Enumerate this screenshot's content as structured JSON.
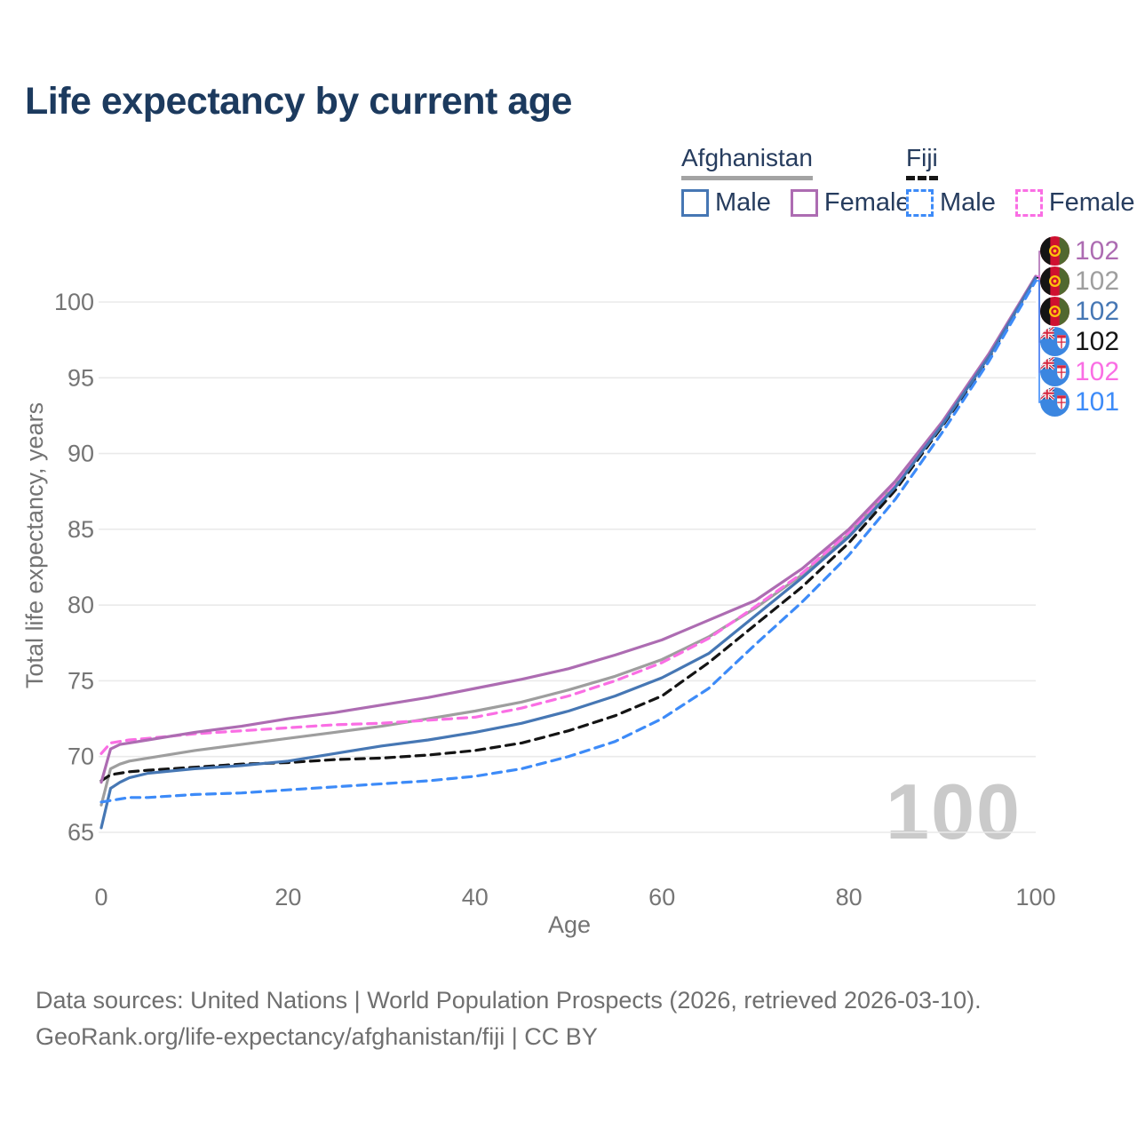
{
  "title": "Life expectancy by current age",
  "legend": {
    "groups": [
      {
        "label": "Afghanistan",
        "underline_style": "solid",
        "underline_color": "#a3a3a3",
        "items": [
          {
            "label": "Male",
            "color": "#4677b4",
            "dashed": false
          },
          {
            "label": "Female",
            "color": "#ad6cb2",
            "dashed": false
          }
        ]
      },
      {
        "label": "Fiji",
        "underline_style": "dashed",
        "underline_color": "#161616",
        "items": [
          {
            "label": "Male",
            "color": "#3d8bf8",
            "dashed": true
          },
          {
            "label": "Female",
            "color": "#fa6ee4",
            "dashed": true
          }
        ]
      }
    ]
  },
  "chart_data": {
    "type": "line",
    "title": "Life expectancy by current age",
    "xlabel": "Age",
    "ylabel": "Total life expectancy, years",
    "xlim": [
      0,
      100
    ],
    "ylim": [
      65,
      103
    ],
    "x_ticks": [
      0,
      20,
      40,
      60,
      80,
      100
    ],
    "y_ticks": [
      65,
      70,
      75,
      80,
      85,
      90,
      95,
      100
    ],
    "grid": "horizontal-only",
    "legend_position": "top-right",
    "age_indicator": "100",
    "x": [
      0,
      1,
      2,
      3,
      5,
      10,
      15,
      20,
      25,
      30,
      35,
      40,
      45,
      50,
      55,
      60,
      65,
      70,
      75,
      80,
      85,
      90,
      95,
      100
    ],
    "series": [
      {
        "key": "afg_total",
        "name": "Afghanistan (both sexes)",
        "country": "Afghanistan",
        "sex": "Both",
        "color": "#9e9e9e",
        "line_style": "solid",
        "flag": "afghanistan",
        "end_label": "102",
        "values": [
          66.8,
          69.2,
          69.5,
          69.7,
          69.9,
          70.4,
          70.8,
          71.2,
          71.6,
          72.0,
          72.5,
          73.0,
          73.6,
          74.4,
          75.3,
          76.4,
          77.9,
          79.8,
          82.0,
          84.7,
          88.0,
          92.0,
          96.5,
          101.7
        ]
      },
      {
        "key": "fiji_total",
        "name": "Fiji (both sexes)",
        "country": "Fiji",
        "sex": "Both",
        "color": "#141414",
        "line_style": "dashed",
        "flag": "fiji",
        "end_label": "102",
        "values": [
          68.4,
          68.8,
          68.9,
          69.0,
          69.1,
          69.3,
          69.5,
          69.6,
          69.8,
          69.9,
          70.1,
          70.4,
          70.9,
          71.7,
          72.7,
          74.0,
          76.2,
          78.7,
          81.2,
          84.1,
          87.6,
          91.8,
          96.3,
          101.6
        ]
      },
      {
        "key": "fiji_female",
        "name": "Fiji Female",
        "country": "Fiji",
        "sex": "Female",
        "color": "#fa6ee4",
        "line_style": "dashed",
        "flag": "fiji",
        "end_label": "102",
        "values": [
          70.2,
          70.9,
          71.0,
          71.1,
          71.2,
          71.5,
          71.7,
          71.9,
          72.1,
          72.2,
          72.4,
          72.6,
          73.2,
          74.0,
          75.0,
          76.2,
          77.8,
          79.9,
          82.1,
          84.8,
          88.1,
          92.0,
          96.5,
          101.7
        ]
      },
      {
        "key": "afg_female",
        "name": "Afghanistan Female",
        "country": "Afghanistan",
        "sex": "Female",
        "color": "#ad6cb2",
        "line_style": "solid",
        "flag": "afghanistan",
        "end_label": "102",
        "values": [
          68.3,
          70.5,
          70.8,
          70.9,
          71.1,
          71.6,
          72.0,
          72.5,
          72.9,
          73.4,
          73.9,
          74.5,
          75.1,
          75.8,
          76.7,
          77.7,
          79.0,
          80.3,
          82.4,
          85.0,
          88.2,
          92.1,
          96.6,
          101.7
        ]
      },
      {
        "key": "afg_male",
        "name": "Afghanistan Male",
        "country": "Afghanistan",
        "sex": "Male",
        "color": "#4677b4",
        "line_style": "solid",
        "flag": "afghanistan",
        "end_label": "102",
        "values": [
          65.3,
          67.9,
          68.3,
          68.6,
          68.9,
          69.2,
          69.4,
          69.7,
          70.2,
          70.7,
          71.1,
          71.6,
          72.2,
          73.0,
          74.0,
          75.2,
          76.8,
          79.3,
          81.8,
          84.5,
          87.8,
          91.9,
          96.4,
          101.6
        ]
      },
      {
        "key": "fiji_male",
        "name": "Fiji Male",
        "country": "Fiji",
        "sex": "Male",
        "color": "#3d8bf8",
        "line_style": "dashed",
        "flag": "fiji",
        "end_label": "101",
        "values": [
          67.0,
          67.1,
          67.2,
          67.3,
          67.3,
          67.5,
          67.6,
          67.8,
          68.0,
          68.2,
          68.4,
          68.7,
          69.2,
          70.0,
          71.0,
          72.5,
          74.5,
          77.4,
          80.2,
          83.3,
          87.0,
          91.4,
          96.1,
          101.4
        ]
      }
    ],
    "end_labels": [
      {
        "series": "afg_female",
        "value": "102"
      },
      {
        "series": "afg_total",
        "value": "102"
      },
      {
        "series": "afg_male",
        "value": "102"
      },
      {
        "series": "fiji_total",
        "value": "102"
      },
      {
        "series": "fiji_female",
        "value": "102"
      },
      {
        "series": "fiji_male",
        "value": "101"
      }
    ]
  },
  "footer": {
    "line1": "Data sources: United Nations | World Population Prospects (2026, retrieved 2026-03-10).",
    "line2": "GeoRank.org/life-expectancy/afghanistan/fiji | CC BY"
  }
}
